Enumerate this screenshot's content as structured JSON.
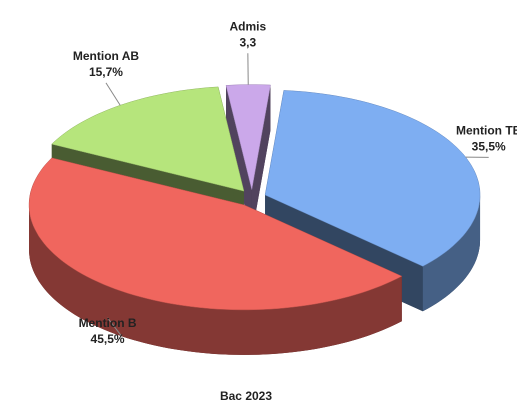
{
  "chart_data": {
    "type": "pie",
    "title": "Bac 2023",
    "categories": [
      "Mention TB",
      "Mention B",
      "Mention AB",
      "Admis"
    ],
    "values": [
      35.5,
      45.5,
      15.7,
      3.3
    ],
    "value_labels": [
      "35,5%",
      "45,5%",
      "15,7%",
      "3,3"
    ],
    "colors": [
      "#7eaef2",
      "#f0665e",
      "#b6e57c",
      "#cba8ea"
    ]
  }
}
